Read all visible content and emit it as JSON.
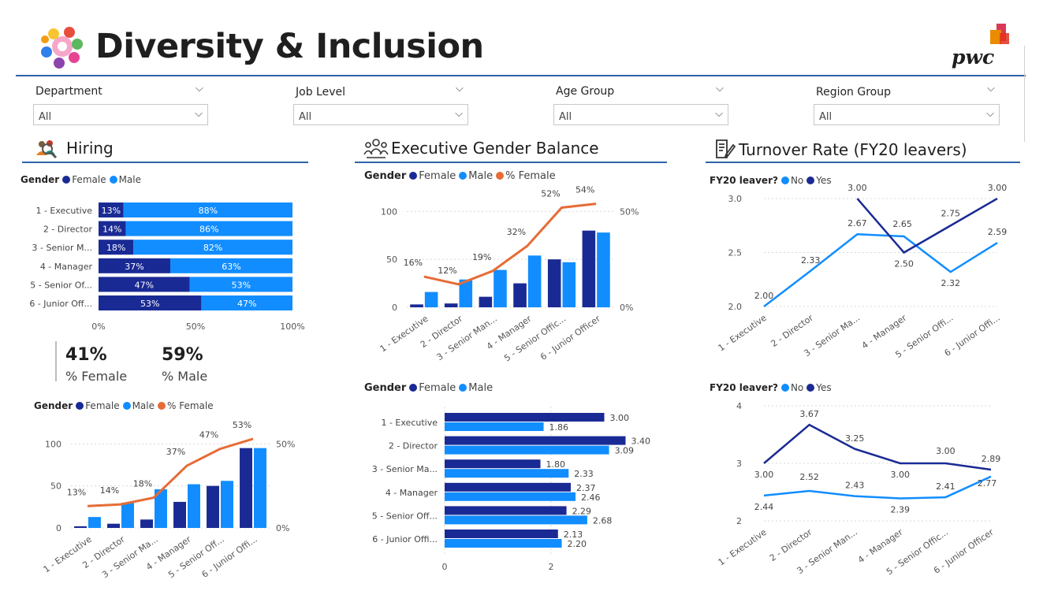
{
  "header": {
    "title": "Diversity & Inclusion",
    "logo_text": "pwc"
  },
  "colors": {
    "female": "#1a2a94",
    "male": "#118dff",
    "pct_female": "#e66c37",
    "accent_line": "#2f62a8"
  },
  "slicers": [
    {
      "label": "Department",
      "value": "All"
    },
    {
      "label": "Job Level",
      "value": "All"
    },
    {
      "label": "Age Group",
      "value": "All"
    },
    {
      "label": "Region Group",
      "value": "All"
    }
  ],
  "panels": {
    "hiring": "Hiring",
    "exec": "Executive Gender Balance",
    "turnover": "Turnover Rate (FY20 leavers)"
  },
  "legends": {
    "gender": "Gender",
    "female": "Female",
    "male": "Male",
    "pct_female": "% Female",
    "leaver": "FY20 leaver?",
    "no": "No",
    "yes": "Yes"
  },
  "kpis": [
    {
      "value": "41%",
      "label": "% Female"
    },
    {
      "value": "59%",
      "label": "% Male"
    }
  ],
  "chart_data": [
    {
      "id": "hiring_stacked",
      "type": "bar",
      "orientation": "horizontal-100%-stacked",
      "categories": [
        "1 - Executive",
        "2 - Director",
        "3 - Senior M...",
        "4 - Manager",
        "5 - Senior Of...",
        "6 - Junior Off..."
      ],
      "series": [
        {
          "name": "Female",
          "values": [
            13,
            14,
            18,
            37,
            47,
            53
          ],
          "labels": [
            "13%",
            "14%",
            "18%",
            "37%",
            "47%",
            "53%"
          ]
        },
        {
          "name": "Male",
          "values": [
            88,
            86,
            82,
            63,
            53,
            47
          ],
          "labels": [
            "88%",
            "86%",
            "82%",
            "63%",
            "53%",
            "47%"
          ]
        }
      ],
      "xticks": [
        "0%",
        "50%",
        "100%"
      ],
      "xlim": [
        0,
        100
      ]
    },
    {
      "id": "hiring_combo",
      "type": "bar",
      "categories": [
        "1 - Executive",
        "2 - Director",
        "3 - Senior Ma...",
        "4 - Manager",
        "5 - Senior Off...",
        "6 - Junior Offi..."
      ],
      "series": [
        {
          "name": "Female",
          "values": [
            2,
            5,
            10,
            31,
            50,
            95
          ]
        },
        {
          "name": "Male",
          "values": [
            13,
            30,
            46,
            52,
            56,
            95
          ]
        }
      ],
      "line": {
        "name": "% Female",
        "values": [
          13,
          14,
          18,
          37,
          47,
          53
        ],
        "labels": [
          "13%",
          "14%",
          "18%",
          "37%",
          "47%",
          "53%"
        ]
      },
      "yticks": [
        "0",
        "50",
        "100"
      ],
      "ylim": [
        0,
        120
      ],
      "y2ticks": [
        "0%",
        "50%"
      ],
      "y2lim": [
        0,
        60
      ]
    },
    {
      "id": "exec_combo",
      "type": "bar",
      "categories": [
        "1 - Executive",
        "2 - Director",
        "3 - Senior Man...",
        "4 - Manager",
        "5 - Senior Offic...",
        "6 - Junior Officer"
      ],
      "series": [
        {
          "name": "Female",
          "values": [
            3,
            4,
            11,
            25,
            50,
            80
          ]
        },
        {
          "name": "Male",
          "values": [
            16,
            29,
            39,
            54,
            47,
            78
          ]
        }
      ],
      "line": {
        "name": "% Female",
        "values": [
          16,
          12,
          19,
          32,
          52,
          54
        ],
        "labels": [
          "16%",
          "12%",
          "19%",
          "32%",
          "52%",
          "54%"
        ]
      },
      "yticks": [
        "0",
        "50",
        "100"
      ],
      "ylim": [
        0,
        120
      ],
      "y2ticks": [
        "0%",
        "50%"
      ],
      "y2lim": [
        0,
        60
      ]
    },
    {
      "id": "exec_bars",
      "type": "bar",
      "orientation": "horizontal-clustered",
      "categories": [
        "1 - Executive",
        "2 - Director",
        "3 - Senior Ma...",
        "4 - Manager",
        "5 - Senior Off...",
        "6 - Junior Offi..."
      ],
      "series": [
        {
          "name": "Female",
          "values": [
            3.0,
            3.4,
            1.8,
            2.37,
            2.29,
            2.13
          ],
          "labels": [
            "3.00",
            "3.40",
            "1.80",
            "2.37",
            "2.29",
            "2.13"
          ]
        },
        {
          "name": "Male",
          "values": [
            1.86,
            3.09,
            2.33,
            2.46,
            2.68,
            2.2
          ],
          "labels": [
            "1.86",
            "3.09",
            "2.33",
            "2.46",
            "2.68",
            "2.20"
          ]
        }
      ],
      "xticks": [
        "0",
        "2"
      ],
      "xlim": [
        0,
        4
      ]
    },
    {
      "id": "turnover_1",
      "type": "line",
      "categories": [
        "1 - Executive",
        "2 - Director",
        "3 - Senior Ma...",
        "4 - Manager",
        "5 - Senior Offi...",
        "6 - Junior Offi..."
      ],
      "series": [
        {
          "name": "No",
          "values": [
            2.0,
            2.33,
            2.67,
            2.65,
            2.32,
            2.59
          ],
          "labels": [
            "2.00",
            "2.33",
            "2.67",
            "2.65",
            "2.32",
            "2.59"
          ]
        },
        {
          "name": "Yes",
          "values": [
            null,
            null,
            3.0,
            2.5,
            2.75,
            3.0
          ],
          "labels": [
            "",
            "",
            "3.00",
            "2.50",
            "2.75",
            "3.00"
          ]
        }
      ],
      "yticks": [
        "2.0",
        "2.5",
        "3.0"
      ],
      "ylim": [
        2.0,
        3.0
      ]
    },
    {
      "id": "turnover_2",
      "type": "line",
      "categories": [
        "1 - Executive",
        "2 - Director",
        "3 - Senior Man...",
        "4 - Manager",
        "5 - Senior Offic...",
        "6 - Junior Officer"
      ],
      "series": [
        {
          "name": "No",
          "values": [
            2.44,
            2.52,
            2.43,
            2.39,
            2.41,
            2.77
          ],
          "labels": [
            "2.44",
            "2.52",
            "2.43",
            "2.39",
            "2.41",
            "2.77"
          ]
        },
        {
          "name": "Yes",
          "values": [
            3.0,
            3.67,
            3.25,
            3.0,
            3.0,
            2.89
          ],
          "labels": [
            "3.00",
            "3.67",
            "3.25",
            "3.00",
            "3.00",
            "2.89"
          ]
        }
      ],
      "yticks": [
        "2",
        "3",
        "4"
      ],
      "ylim": [
        2,
        4
      ]
    }
  ]
}
